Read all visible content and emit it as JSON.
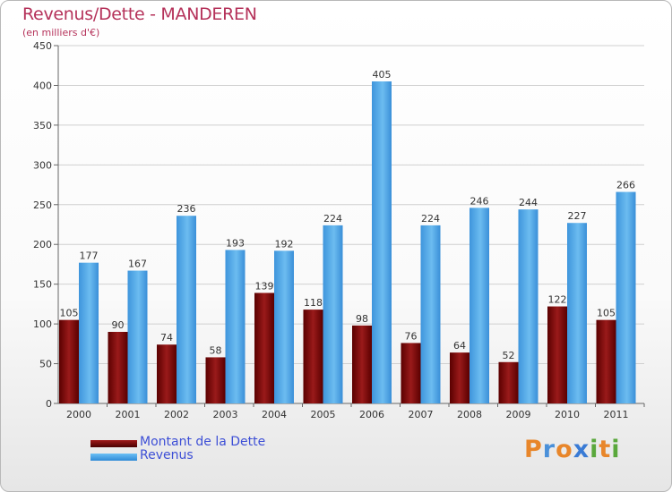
{
  "title": "Revenus/Dette - MANDEREN",
  "subtitle": "(en milliers d'€)",
  "chart_data": {
    "type": "bar",
    "title": "Revenus/Dette - MANDEREN",
    "ylabel": "(en milliers d'€)",
    "categories": [
      "2000",
      "2001",
      "2002",
      "2003",
      "2004",
      "2005",
      "2006",
      "2007",
      "2008",
      "2009",
      "2010",
      "2011"
    ],
    "series": [
      {
        "name": "Montant de la Dette",
        "values": [
          105,
          90,
          74,
          58,
          139,
          118,
          98,
          76,
          64,
          52,
          122,
          105
        ],
        "color": "#7a0a0a"
      },
      {
        "name": "Revenus",
        "values": [
          177,
          167,
          236,
          193,
          192,
          224,
          405,
          224,
          246,
          244,
          227,
          266
        ],
        "color": "#4aa3e6"
      }
    ],
    "ylim": [
      0,
      450
    ],
    "yticks": [
      "0",
      "50",
      "100",
      "150",
      "200",
      "250",
      "300",
      "350",
      "400",
      "450"
    ],
    "grid": true,
    "legend": "bottom-left"
  },
  "legend": {
    "debt_label": "Montant de la Dette",
    "revenue_label": "Revenus"
  },
  "logo": {
    "letters": [
      "P",
      "r",
      "o",
      "x",
      "i",
      "t",
      "i"
    ],
    "colors": [
      "#e8862a",
      "#4a90d9",
      "#e8862a",
      "#3a7bd5",
      "#5aa83c",
      "#e8862a",
      "#5aa83c"
    ]
  }
}
